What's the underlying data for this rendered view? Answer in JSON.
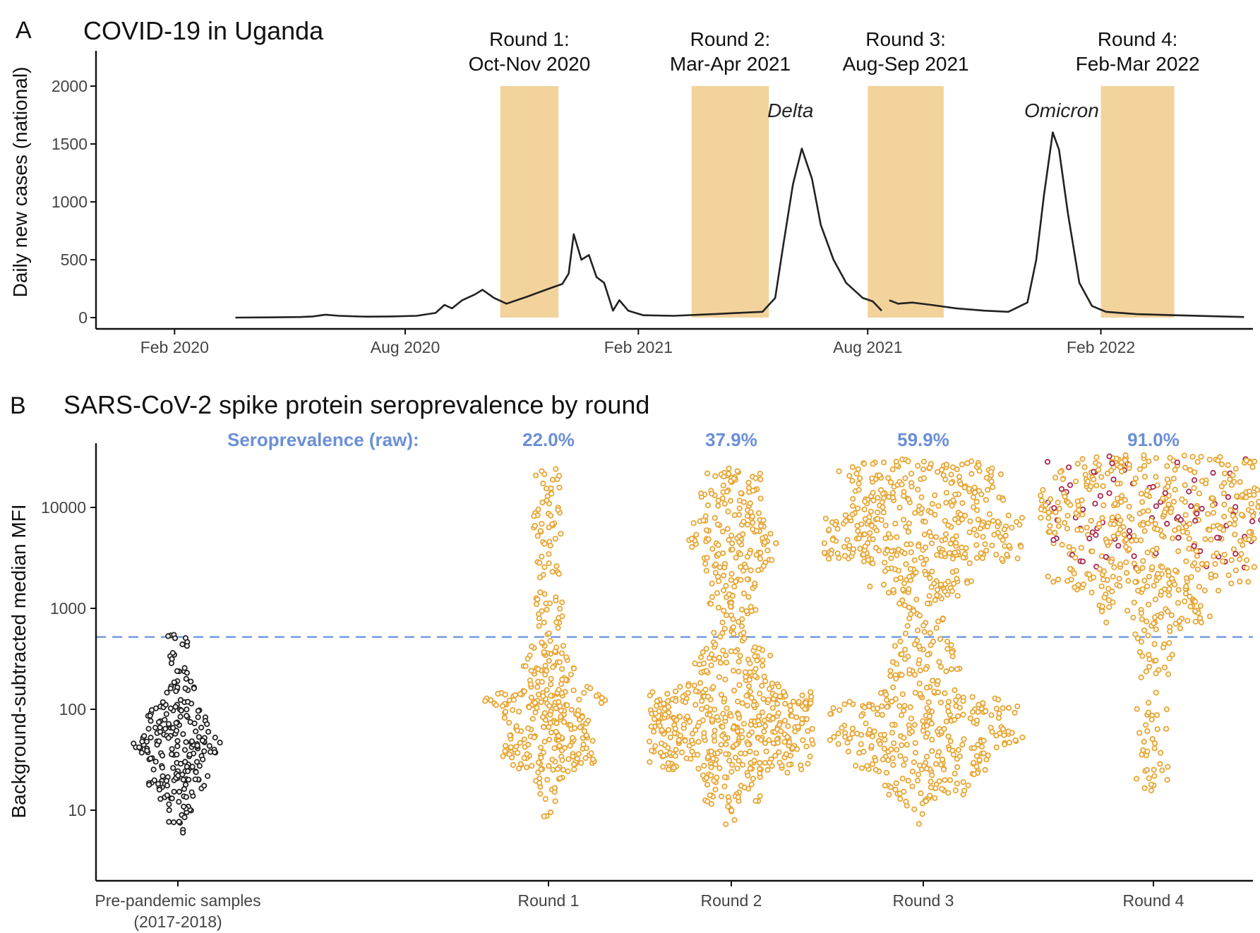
{
  "panels": {
    "a": {
      "letter": "A",
      "title": "COVID-19 in Uganda"
    },
    "b": {
      "letter": "B",
      "title": "SARS-CoV-2 spike protein seroprevalence by round"
    }
  },
  "colors": {
    "band": "#f2d39c",
    "line": "#222222",
    "dot_pre": "#222222",
    "dot_round": "#e8a532",
    "dot_highlight": "#a8284f",
    "threshold": "#7a9fe0",
    "sero": "#6b8fd6",
    "axis": "#111111"
  },
  "chart_data": [
    {
      "type": "line",
      "title": "COVID-19 in Uganda",
      "ylabel": "Daily new cases (national)",
      "xlabel": "",
      "ylim": [
        0,
        2000
      ],
      "yticks": [
        0,
        500,
        1000,
        1500,
        2000
      ],
      "xlim": [
        "2019-12-01",
        "2022-06-01"
      ],
      "xticks": [
        {
          "date": "2020-02-01",
          "label": "Feb 2020"
        },
        {
          "date": "2020-08-01",
          "label": "Aug 2020"
        },
        {
          "date": "2021-02-01",
          "label": "Feb 2021"
        },
        {
          "date": "2021-08-01",
          "label": "Aug 2021"
        },
        {
          "date": "2022-02-01",
          "label": "Feb 2022"
        }
      ],
      "rounds": [
        {
          "name": "Round 1:",
          "period": "Oct-Nov 2020",
          "start": "2020-10-15",
          "end": "2020-11-30"
        },
        {
          "name": "Round 2:",
          "period": "Mar-Apr 2021",
          "start": "2021-03-15",
          "end": "2021-05-15"
        },
        {
          "name": "Round 3:",
          "period": "Aug-Sep 2021",
          "start": "2021-08-01",
          "end": "2021-09-30"
        },
        {
          "name": "Round 4:",
          "period": "Feb-Mar 2022",
          "start": "2022-02-01",
          "end": "2022-03-31"
        }
      ],
      "annotations": [
        {
          "text": "Delta",
          "date": "2021-06-01",
          "value": 1780
        },
        {
          "text": "Omicron",
          "date": "2022-01-01",
          "value": 1780
        }
      ],
      "series": [
        {
          "name": "Daily new cases",
          "points": [
            [
              "2020-03-20",
              0
            ],
            [
              "2020-04-15",
              2
            ],
            [
              "2020-05-10",
              5
            ],
            [
              "2020-05-20",
              10
            ],
            [
              "2020-05-30",
              25
            ],
            [
              "2020-06-10",
              15
            ],
            [
              "2020-07-01",
              8
            ],
            [
              "2020-07-20",
              10
            ],
            [
              "2020-08-10",
              15
            ],
            [
              "2020-08-25",
              40
            ],
            [
              "2020-09-01",
              110
            ],
            [
              "2020-09-07",
              80
            ],
            [
              "2020-09-15",
              150
            ],
            [
              "2020-09-25",
              200
            ],
            [
              "2020-10-01",
              240
            ],
            [
              "2020-10-10",
              170
            ],
            [
              "2020-10-20",
              120
            ],
            [
              "2020-10-28",
              150
            ],
            [
              "2020-11-05",
              180
            ],
            [
              "2020-11-15",
              220
            ],
            [
              "2020-11-25",
              260
            ],
            [
              "2020-12-03",
              290
            ],
            [
              "2020-12-08",
              380
            ],
            [
              "2020-12-12",
              720
            ],
            [
              "2020-12-18",
              500
            ],
            [
              "2020-12-24",
              540
            ],
            [
              "2020-12-30",
              350
            ],
            [
              "2021-01-05",
              300
            ],
            [
              "2021-01-12",
              60
            ],
            [
              "2021-01-17",
              150
            ],
            [
              "2021-01-24",
              60
            ],
            [
              "2021-02-05",
              20
            ],
            [
              "2021-03-01",
              15
            ],
            [
              "2021-04-01",
              30
            ],
            [
              "2021-04-20",
              40
            ],
            [
              "2021-05-10",
              50
            ],
            [
              "2021-05-20",
              170
            ],
            [
              "2021-05-26",
              600
            ],
            [
              "2021-06-03",
              1150
            ],
            [
              "2021-06-10",
              1460
            ],
            [
              "2021-06-18",
              1200
            ],
            [
              "2021-06-25",
              800
            ],
            [
              "2021-07-05",
              500
            ],
            [
              "2021-07-15",
              300
            ],
            [
              "2021-07-28",
              170
            ],
            [
              "2021-08-05",
              140
            ],
            [
              "2021-08-12",
              60
            ],
            null,
            [
              "2021-08-18",
              150
            ],
            [
              "2021-08-25",
              120
            ],
            [
              "2021-09-05",
              130
            ],
            [
              "2021-09-20",
              110
            ],
            [
              "2021-10-10",
              80
            ],
            [
              "2021-11-01",
              60
            ],
            [
              "2021-11-20",
              50
            ],
            [
              "2021-12-05",
              130
            ],
            [
              "2021-12-12",
              500
            ],
            [
              "2021-12-18",
              1050
            ],
            [
              "2021-12-25",
              1600
            ],
            [
              "2021-12-30",
              1450
            ],
            [
              "2022-01-06",
              900
            ],
            [
              "2022-01-15",
              300
            ],
            [
              "2022-01-25",
              100
            ],
            [
              "2022-02-05",
              50
            ],
            [
              "2022-03-01",
              30
            ],
            [
              "2022-04-01",
              20
            ],
            [
              "2022-05-25",
              5
            ]
          ]
        }
      ]
    },
    {
      "type": "scatter",
      "title": "SARS-CoV-2 spike protein seroprevalence by round",
      "ylabel": "Background-subtracted median MFI",
      "xlabel": "",
      "yscale": "log",
      "ylim": [
        2,
        40000
      ],
      "yticks": [
        10,
        100,
        1000,
        10000
      ],
      "threshold": 520,
      "sero_label": "Seroprevalence (raw):",
      "categories": [
        "Pre-pandemic samples",
        "Round 1",
        "Round 2",
        "Round 3",
        "Round 4"
      ],
      "category_sublabels": [
        "(2017-2018)",
        "",
        "",
        "",
        ""
      ],
      "seroprevalence": [
        "",
        "22.0%",
        "37.9%",
        "59.9%",
        "91.0%"
      ],
      "groups": [
        {
          "name": "Pre-pandemic samples",
          "n": 230,
          "bands": [
            [
              5.5,
              9,
              8
            ],
            [
              9,
              15,
              18
            ],
            [
              15,
              30,
              50
            ],
            [
              30,
              60,
              70
            ],
            [
              60,
              120,
              50
            ],
            [
              120,
              250,
              20
            ],
            [
              250,
              550,
              14
            ]
          ]
        },
        {
          "name": "Round 1",
          "n": 380,
          "bands": [
            [
              8,
              12,
              3
            ],
            [
              12,
              25,
              16
            ],
            [
              25,
              60,
              95
            ],
            [
              60,
              150,
              115
            ],
            [
              150,
              400,
              55
            ],
            [
              400,
              1100,
              22
            ],
            [
              1100,
              4000,
              22
            ],
            [
              4000,
              25000,
              42
            ]
          ]
        },
        {
          "name": "Round 2",
          "n": 650,
          "bands": [
            [
              7,
              12,
              7
            ],
            [
              12,
              25,
              40
            ],
            [
              25,
              60,
              160
            ],
            [
              60,
              150,
              190
            ],
            [
              150,
              400,
              70
            ],
            [
              400,
              1000,
              30
            ],
            [
              1000,
              2500,
              40
            ],
            [
              2500,
              8000,
              90
            ],
            [
              8000,
              25000,
              60
            ]
          ]
        },
        {
          "name": "Round 3",
          "n": 780,
          "bands": [
            [
              7,
              12,
              5
            ],
            [
              12,
              25,
              50
            ],
            [
              25,
              60,
              120
            ],
            [
              60,
              150,
              120
            ],
            [
              150,
              400,
              45
            ],
            [
              400,
              1100,
              30
            ],
            [
              1100,
              3000,
              70
            ],
            [
              3000,
              8000,
              190
            ],
            [
              8000,
              30000,
              160
            ]
          ]
        },
        {
          "name": "Round 4",
          "n": 640,
          "bands": [
            [
              15,
              30,
              14
            ],
            [
              30,
              100,
              20
            ],
            [
              100,
              300,
              10
            ],
            [
              300,
              700,
              22
            ],
            [
              700,
              1500,
              60
            ],
            [
              1500,
              4500,
              150
            ],
            [
              4500,
              12000,
              200
            ],
            [
              12000,
              33000,
              160
            ]
          ],
          "highlights": 60
        }
      ]
    }
  ]
}
